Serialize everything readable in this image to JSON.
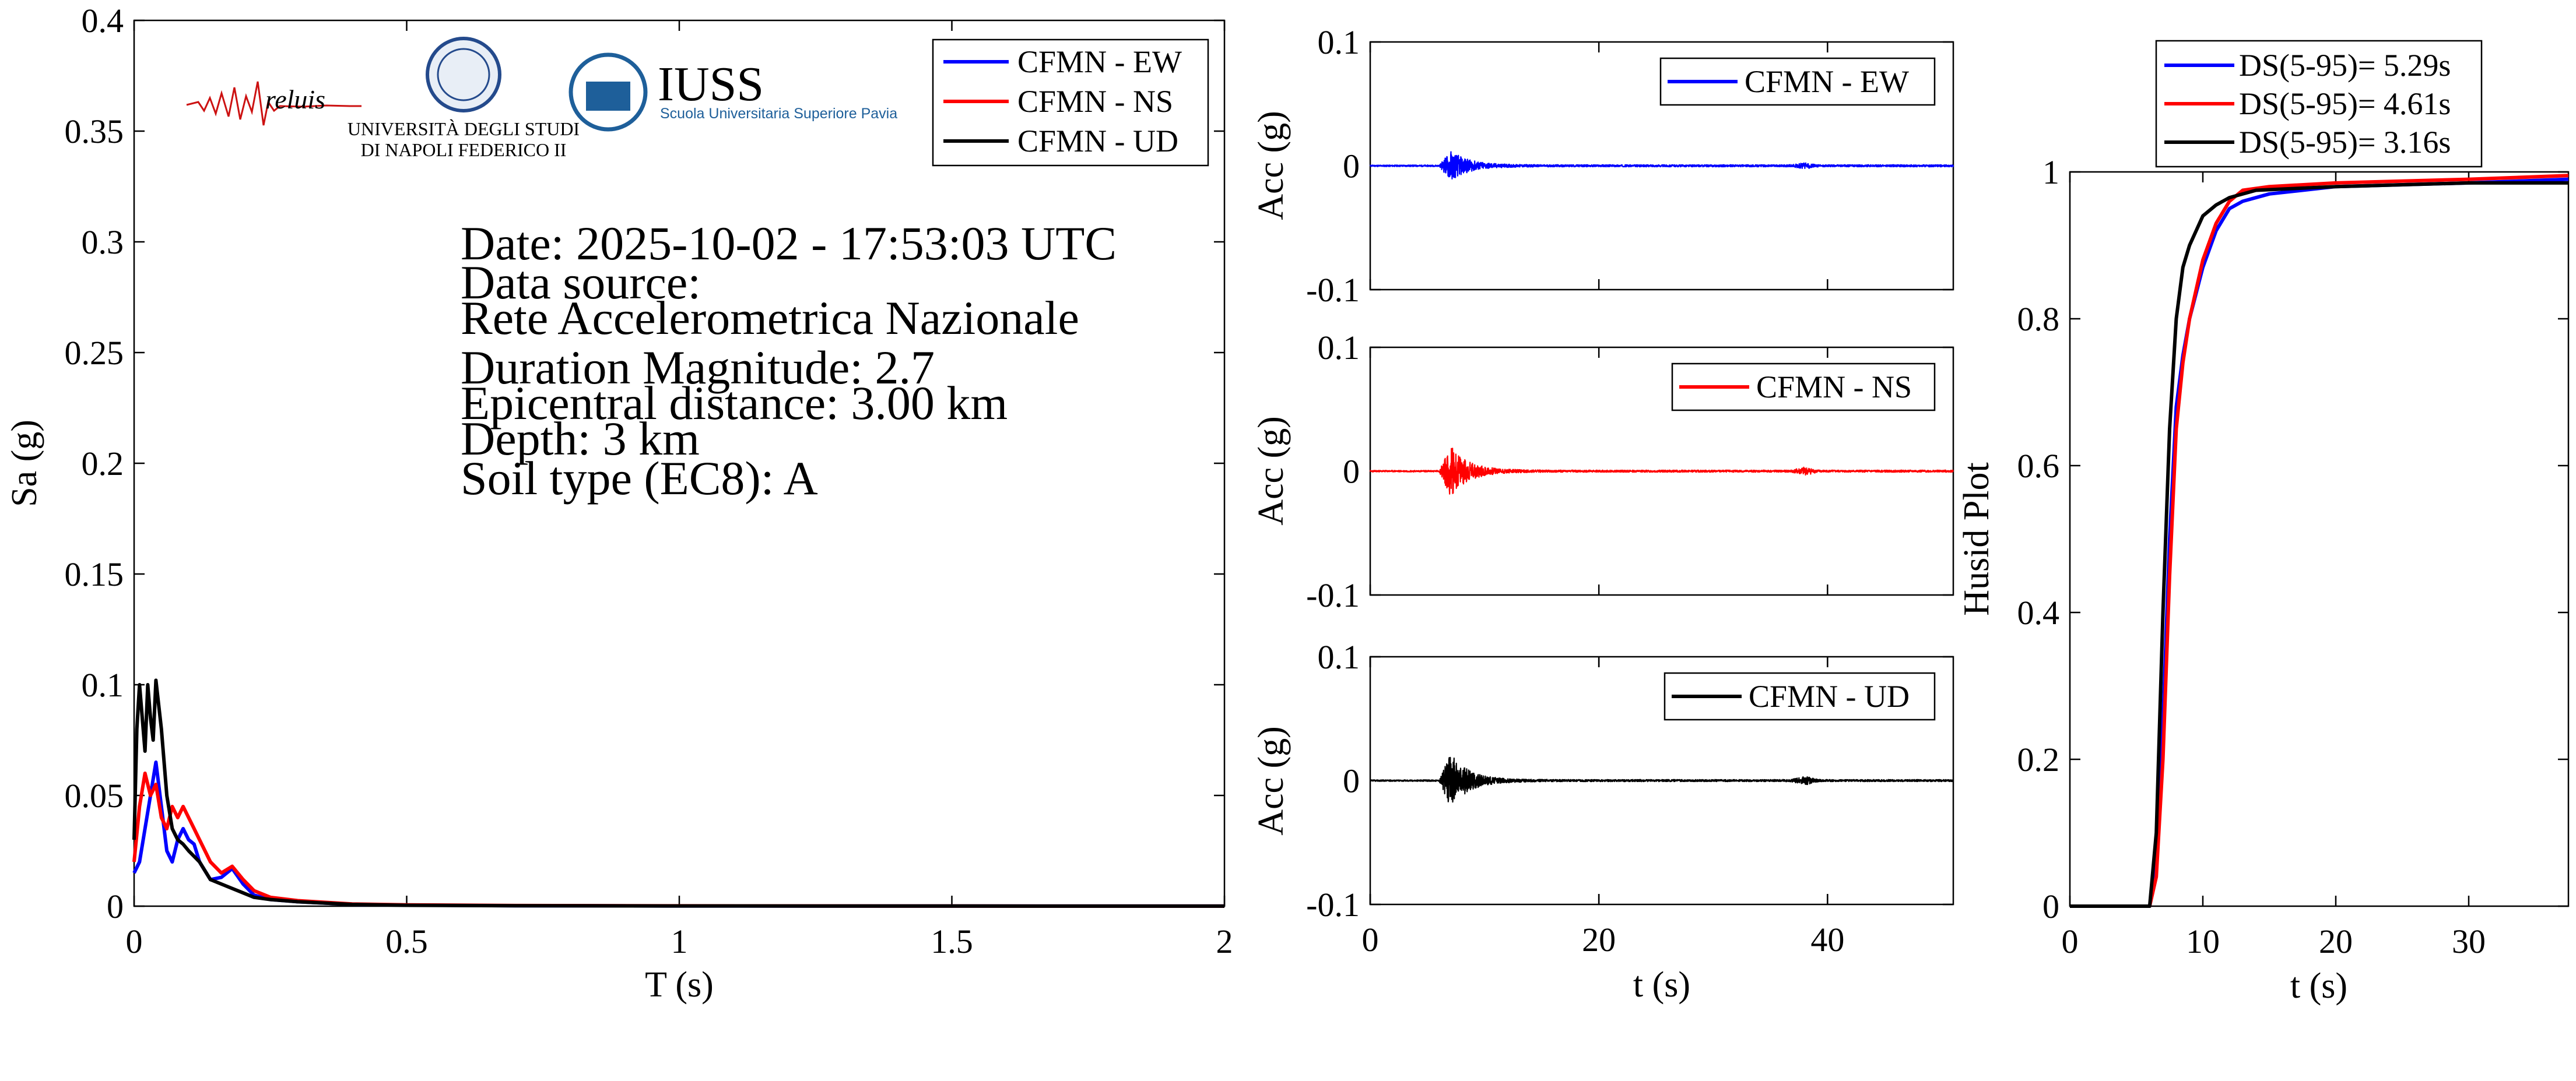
{
  "info": {
    "date": "Date: 2025-10-02 - 17:53:03 UTC",
    "source_label": "Data source:",
    "source": "Rete Accelerometrica Nazionale",
    "magnitude": "Duration Magnitude: 2.7",
    "epicentral": "Epicentral distance: 3.00 km",
    "depth": "Depth: 3 km",
    "soil": "Soil type (EC8): A"
  },
  "logos": {
    "reluis": "reluis",
    "unina_line1": "UNIVERSITÀ DEGLI STUDI",
    "unina_line2": "DI NAPOLI FEDERICO II",
    "iuss": "IUSS",
    "iuss_sub": "Scuola Universitaria Superiore Pavia"
  },
  "colors": {
    "ew": "#0000ff",
    "ns": "#ff0000",
    "ud": "#000000"
  },
  "chart_data": [
    {
      "type": "line",
      "id": "spectra",
      "xlabel": "T (s)",
      "ylabel": "Sa (g)",
      "xlim": [
        0,
        2
      ],
      "ylim": [
        0,
        0.4
      ],
      "xticks": [
        "0",
        "0.5",
        "1",
        "1.5",
        "2"
      ],
      "yticks": [
        "0",
        "0.05",
        "0.1",
        "0.15",
        "0.2",
        "0.25",
        "0.3",
        "0.35",
        "0.4"
      ],
      "legend_position": "top-right",
      "series": [
        {
          "name": "CFMN - EW",
          "color": "#0000ff",
          "x": [
            0,
            0.01,
            0.02,
            0.03,
            0.04,
            0.05,
            0.06,
            0.07,
            0.08,
            0.09,
            0.1,
            0.11,
            0.12,
            0.14,
            0.16,
            0.18,
            0.2,
            0.22,
            0.25,
            0.3,
            0.4,
            0.5,
            0.7,
            1.0,
            1.5,
            2.0
          ],
          "y": [
            0.015,
            0.02,
            0.035,
            0.05,
            0.065,
            0.045,
            0.025,
            0.02,
            0.03,
            0.035,
            0.03,
            0.028,
            0.02,
            0.012,
            0.013,
            0.017,
            0.01,
            0.005,
            0.003,
            0.002,
            0.0008,
            0.0005,
            0.0002,
            0.0001,
            5e-05,
            3e-05
          ]
        },
        {
          "name": "CFMN - NS",
          "color": "#ff0000",
          "x": [
            0,
            0.01,
            0.02,
            0.03,
            0.04,
            0.05,
            0.06,
            0.07,
            0.08,
            0.09,
            0.1,
            0.11,
            0.12,
            0.14,
            0.16,
            0.18,
            0.2,
            0.22,
            0.25,
            0.3,
            0.4,
            0.5,
            0.7,
            1.0,
            1.5,
            2.0
          ],
          "y": [
            0.02,
            0.045,
            0.06,
            0.05,
            0.055,
            0.04,
            0.035,
            0.045,
            0.04,
            0.045,
            0.04,
            0.035,
            0.03,
            0.02,
            0.015,
            0.018,
            0.012,
            0.007,
            0.004,
            0.0025,
            0.001,
            0.0006,
            0.0003,
            0.00015,
            6e-05,
            3e-05
          ]
        },
        {
          "name": "CFMN - UD",
          "color": "#000000",
          "x": [
            0,
            0.005,
            0.01,
            0.02,
            0.025,
            0.03,
            0.035,
            0.04,
            0.05,
            0.06,
            0.07,
            0.08,
            0.09,
            0.1,
            0.12,
            0.14,
            0.16,
            0.18,
            0.2,
            0.22,
            0.25,
            0.3,
            0.4,
            0.5,
            0.7,
            1.0,
            1.5,
            2.0
          ],
          "y": [
            0.03,
            0.08,
            0.1,
            0.07,
            0.1,
            0.085,
            0.075,
            0.102,
            0.08,
            0.05,
            0.035,
            0.03,
            0.028,
            0.025,
            0.02,
            0.012,
            0.01,
            0.008,
            0.006,
            0.004,
            0.003,
            0.002,
            0.0008,
            0.0004,
            0.0002,
            0.0001,
            4e-05,
            2e-05
          ]
        }
      ]
    },
    {
      "type": "line",
      "id": "acc_ew",
      "ylabel": "Acc (g)",
      "xlim": [
        0,
        51
      ],
      "ylim": [
        -0.1,
        0.1
      ],
      "yticks": [
        "-0.1",
        "0",
        "0.1"
      ],
      "legend_position": "top-right",
      "series": [
        {
          "name": "CFMN - EW",
          "color": "#0000ff",
          "peak": 0.012,
          "peak_time": 7.0,
          "burst_time": 38.0
        }
      ]
    },
    {
      "type": "line",
      "id": "acc_ns",
      "ylabel": "Acc (g)",
      "xlim": [
        0,
        51
      ],
      "ylim": [
        -0.1,
        0.1
      ],
      "yticks": [
        "-0.1",
        "0",
        "0.1"
      ],
      "legend_position": "top-right",
      "series": [
        {
          "name": "CFMN - NS",
          "color": "#ff0000",
          "peak": 0.02,
          "peak_time": 7.0,
          "burst_time": 38.0
        }
      ]
    },
    {
      "type": "line",
      "id": "acc_ud",
      "xlabel": "t (s)",
      "ylabel": "Acc (g)",
      "xlim": [
        0,
        51
      ],
      "ylim": [
        -0.1,
        0.1
      ],
      "xticks": [
        "0",
        "20",
        "40"
      ],
      "yticks": [
        "-0.1",
        "0",
        "0.1"
      ],
      "legend_position": "top-right",
      "series": [
        {
          "name": "CFMN - UD",
          "color": "#000000",
          "peak": 0.022,
          "peak_time": 7.0,
          "burst_time": 38.0
        }
      ]
    },
    {
      "type": "line",
      "id": "husid",
      "xlabel": "t (s)",
      "ylabel": "Husid Plot",
      "xlim": [
        0,
        37.5
      ],
      "ylim": [
        0,
        1
      ],
      "xticks": [
        "0",
        "10",
        "20",
        "30"
      ],
      "yticks": [
        "0",
        "0.2",
        "0.4",
        "0.6",
        "0.8",
        "1"
      ],
      "legend_position": "top (outside)",
      "series": [
        {
          "name": "DS(5-95)= 5.29s",
          "color": "#0000ff",
          "x": [
            0,
            6.0,
            6.5,
            7.0,
            7.5,
            8.0,
            8.5,
            9.0,
            10.0,
            11.0,
            12.0,
            13.0,
            15.0,
            20.0,
            30.0,
            37.5
          ],
          "y": [
            0,
            0,
            0.05,
            0.25,
            0.5,
            0.68,
            0.75,
            0.8,
            0.87,
            0.92,
            0.95,
            0.96,
            0.97,
            0.98,
            0.985,
            0.99
          ]
        },
        {
          "name": "DS(5-95)= 4.61s",
          "color": "#ff0000",
          "x": [
            0,
            6.0,
            6.5,
            7.0,
            7.5,
            8.0,
            8.5,
            9.0,
            10.0,
            11.0,
            12.0,
            13.0,
            15.0,
            20.0,
            30.0,
            37.5
          ],
          "y": [
            0,
            0,
            0.04,
            0.2,
            0.45,
            0.65,
            0.74,
            0.8,
            0.88,
            0.93,
            0.96,
            0.975,
            0.98,
            0.985,
            0.99,
            0.995
          ]
        },
        {
          "name": "DS(5-95)= 3.16s",
          "color": "#000000",
          "x": [
            0,
            6.0,
            6.5,
            7.0,
            7.5,
            8.0,
            8.5,
            9.0,
            9.5,
            10.0,
            11.0,
            12.0,
            14.0,
            20.0,
            30.0,
            37.5
          ],
          "y": [
            0,
            0,
            0.1,
            0.4,
            0.65,
            0.8,
            0.87,
            0.9,
            0.92,
            0.94,
            0.955,
            0.965,
            0.975,
            0.98,
            0.985,
            0.985
          ]
        }
      ]
    }
  ]
}
